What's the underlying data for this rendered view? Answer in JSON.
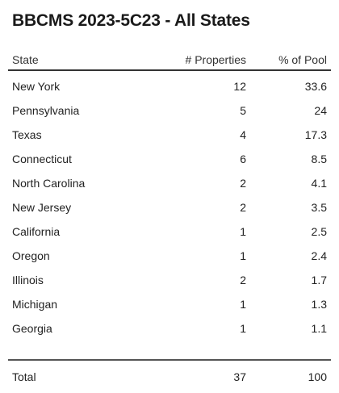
{
  "title": "BBCMS 2023-5C23 - All States",
  "columns": {
    "state": "State",
    "properties": "# Properties",
    "pool": "% of Pool"
  },
  "rows": [
    {
      "state": "New York",
      "properties": "12",
      "pool": "33.6"
    },
    {
      "state": "Pennsylvania",
      "properties": "5",
      "pool": "24"
    },
    {
      "state": "Texas",
      "properties": "4",
      "pool": "17.3"
    },
    {
      "state": "Connecticut",
      "properties": "6",
      "pool": "8.5"
    },
    {
      "state": "North Carolina",
      "properties": "2",
      "pool": "4.1"
    },
    {
      "state": "New Jersey",
      "properties": "2",
      "pool": "3.5"
    },
    {
      "state": "California",
      "properties": "1",
      "pool": "2.5"
    },
    {
      "state": "Oregon",
      "properties": "1",
      "pool": "2.4"
    },
    {
      "state": "Illinois",
      "properties": "2",
      "pool": "1.7"
    },
    {
      "state": "Michigan",
      "properties": "1",
      "pool": "1.3"
    },
    {
      "state": "Georgia",
      "properties": "1",
      "pool": "1.1"
    }
  ],
  "total": {
    "label": "Total",
    "properties": "37",
    "pool": "100"
  }
}
